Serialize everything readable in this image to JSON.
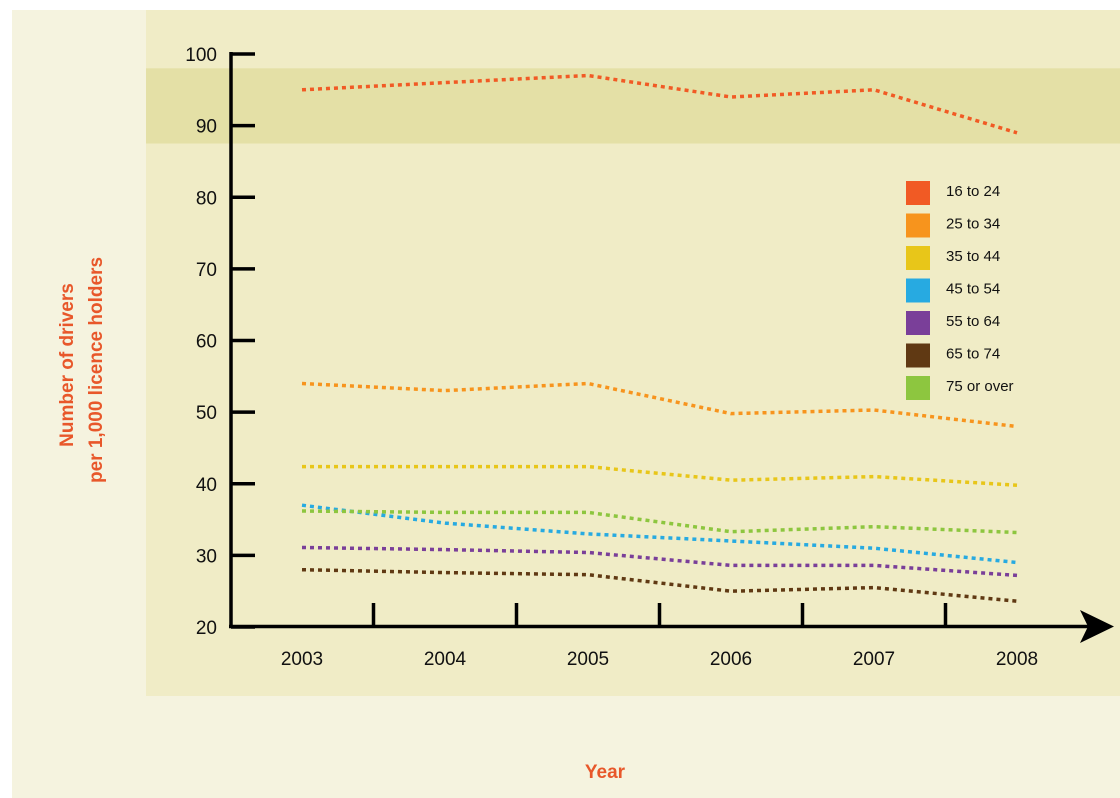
{
  "chart_data": {
    "type": "line",
    "title": "",
    "xlabel": "Year",
    "ylabel_line1": "Number of drivers",
    "ylabel_line2": "per 1,000 licence holders",
    "x": [
      "2003",
      "2004",
      "2005",
      "2006",
      "2007",
      "2008"
    ],
    "yticks": [
      "20",
      "30",
      "40",
      "50",
      "60",
      "70",
      "80",
      "90",
      "100"
    ],
    "ylim": [
      20,
      100
    ],
    "highlight_band": [
      87.5,
      98
    ],
    "legend_position": "top-right",
    "line_style": "dotted",
    "grid": false,
    "series": [
      {
        "name": "16 to 24",
        "color": "#f15a24",
        "values": [
          95,
          96,
          97,
          94,
          95,
          89
        ]
      },
      {
        "name": "25 to 34",
        "color": "#f7941d",
        "values": [
          54,
          53,
          54,
          49.8,
          50.3,
          48
        ]
      },
      {
        "name": "35 to 44",
        "color": "#e8c619",
        "values": [
          42.4,
          42.4,
          42.4,
          40.5,
          41,
          39.8
        ]
      },
      {
        "name": "45 to 54",
        "color": "#27aae1",
        "values": [
          37,
          34.5,
          33,
          32,
          31,
          29
        ]
      },
      {
        "name": "55 to 64",
        "color": "#7a3f99",
        "values": [
          31.1,
          30.8,
          30.4,
          28.6,
          28.6,
          27.2
        ]
      },
      {
        "name": "65 to 74",
        "color": "#603913",
        "values": [
          28,
          27.6,
          27.3,
          25,
          25.5,
          23.6
        ]
      },
      {
        "name": "75 or over",
        "color": "#8dc63f",
        "values": [
          36.2,
          36,
          36,
          33.3,
          34,
          33.2
        ]
      }
    ]
  }
}
